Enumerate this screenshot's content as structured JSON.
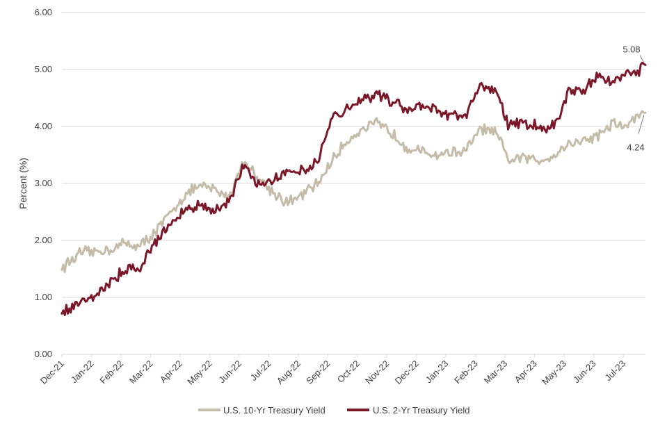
{
  "chart_data": {
    "type": "line",
    "title": "",
    "xlabel": "",
    "ylabel": "Percent (%)",
    "ylim": [
      0,
      6
    ],
    "yticks": [
      "0.00",
      "1.00",
      "2.00",
      "3.00",
      "4.00",
      "5.00",
      "6.00"
    ],
    "grid": "horizontal",
    "legend_position": "bottom",
    "x_labels": [
      "Dec-21",
      "Jan-22",
      "Feb-22",
      "Mar-22",
      "Apr-22",
      "May-22",
      "Jun-22",
      "Jul-22",
      "Aug-22",
      "Sep-22",
      "Oct-22",
      "Nov-22",
      "Dec-22",
      "Jan-23",
      "Feb-23",
      "Mar-23",
      "Apr-23",
      "May-23",
      "Jun-23",
      "Jul-23"
    ],
    "x": [
      "Dec-21",
      "Dec-21",
      "Jan-22",
      "Jan-22",
      "Feb-22",
      "Feb-22",
      "Mar-22",
      "Mar-22",
      "Apr-22",
      "Apr-22",
      "May-22",
      "May-22",
      "Jun-22",
      "Jun-22",
      "Jul-22",
      "Jul-22",
      "Aug-22",
      "Aug-22",
      "Sep-22",
      "Sep-22",
      "Oct-22",
      "Oct-22",
      "Nov-22",
      "Nov-22",
      "Dec-22",
      "Dec-22",
      "Jan-23",
      "Jan-23",
      "Feb-23",
      "Feb-23",
      "Mar-23",
      "Mar-23",
      "Apr-23",
      "Apr-23",
      "May-23",
      "May-23",
      "Jun-23",
      "Jun-23",
      "Jul-23",
      "Jul-23",
      "Jul-23"
    ],
    "series": [
      {
        "name": "U.S. 10-Yr Treasury Yield",
        "color": "#c4bca8",
        "values": [
          1.52,
          1.78,
          1.8,
          1.85,
          1.95,
          1.9,
          2.15,
          2.45,
          2.8,
          2.95,
          2.9,
          2.75,
          3.4,
          3.1,
          2.85,
          2.65,
          2.8,
          3.0,
          3.4,
          3.75,
          3.95,
          4.05,
          3.9,
          3.65,
          3.55,
          3.5,
          3.55,
          3.55,
          3.95,
          3.9,
          3.4,
          3.45,
          3.4,
          3.5,
          3.7,
          3.75,
          3.85,
          4.05,
          4.0,
          4.2,
          4.24
        ]
      },
      {
        "name": "U.S. 2-Yr Treasury Yield",
        "color": "#7a1728",
        "values": [
          0.73,
          0.95,
          1.05,
          1.25,
          1.5,
          1.55,
          1.95,
          2.3,
          2.5,
          2.65,
          2.5,
          2.65,
          3.35,
          3.0,
          3.1,
          3.2,
          3.25,
          3.4,
          4.15,
          4.3,
          4.5,
          4.55,
          4.45,
          4.3,
          4.35,
          4.3,
          4.2,
          4.2,
          4.7,
          4.65,
          4.0,
          4.05,
          4.0,
          4.0,
          4.6,
          4.65,
          4.9,
          4.75,
          4.9,
          4.95,
          5.08
        ]
      }
    ],
    "annotations": [
      {
        "text": "5.08",
        "series": 1
      },
      {
        "text": "4.24",
        "series": 0
      }
    ]
  }
}
